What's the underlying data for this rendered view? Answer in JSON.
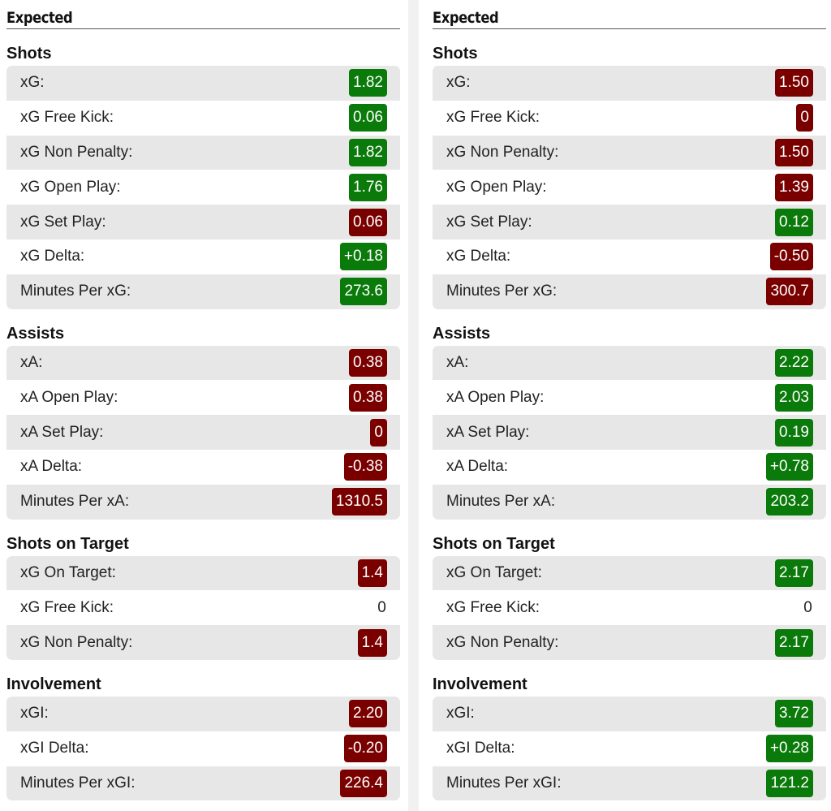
{
  "colors": {
    "good": "#0a7a0a",
    "bad": "#7a0000",
    "row_alt": "#e7e7e7"
  },
  "panels": [
    {
      "header": "Expected",
      "sections": [
        {
          "title": "Shots",
          "rows": [
            {
              "label": "xG:",
              "value": "1.82",
              "status": "good"
            },
            {
              "label": "xG Free Kick:",
              "value": "0.06",
              "status": "good"
            },
            {
              "label": "xG Non Penalty:",
              "value": "1.82",
              "status": "good"
            },
            {
              "label": "xG Open Play:",
              "value": "1.76",
              "status": "good"
            },
            {
              "label": "xG Set Play:",
              "value": "0.06",
              "status": "bad"
            },
            {
              "label": "xG Delta:",
              "value": "+0.18",
              "status": "good"
            },
            {
              "label": "Minutes Per xG:",
              "value": "273.6",
              "status": "good"
            }
          ]
        },
        {
          "title": "Assists",
          "rows": [
            {
              "label": "xA:",
              "value": "0.38",
              "status": "bad"
            },
            {
              "label": "xA Open Play:",
              "value": "0.38",
              "status": "bad"
            },
            {
              "label": "xA Set Play:",
              "value": "0",
              "status": "bad"
            },
            {
              "label": "xA Delta:",
              "value": "-0.38",
              "status": "bad"
            },
            {
              "label": "Minutes Per xA:",
              "value": "1310.5",
              "status": "bad"
            }
          ]
        },
        {
          "title": "Shots on Target",
          "rows": [
            {
              "label": "xG On Target:",
              "value": "1.4",
              "status": "bad"
            },
            {
              "label": "xG Free Kick:",
              "value": "0",
              "status": "plain"
            },
            {
              "label": "xG Non Penalty:",
              "value": "1.4",
              "status": "bad"
            }
          ]
        },
        {
          "title": "Involvement",
          "rows": [
            {
              "label": "xGI:",
              "value": "2.20",
              "status": "bad"
            },
            {
              "label": "xGI Delta:",
              "value": "-0.20",
              "status": "bad"
            },
            {
              "label": "Minutes Per xGI:",
              "value": "226.4",
              "status": "bad"
            }
          ]
        }
      ]
    },
    {
      "header": "Expected",
      "sections": [
        {
          "title": "Shots",
          "rows": [
            {
              "label": "xG:",
              "value": "1.50",
              "status": "bad"
            },
            {
              "label": "xG Free Kick:",
              "value": "0",
              "status": "bad"
            },
            {
              "label": "xG Non Penalty:",
              "value": "1.50",
              "status": "bad"
            },
            {
              "label": "xG Open Play:",
              "value": "1.39",
              "status": "bad"
            },
            {
              "label": "xG Set Play:",
              "value": "0.12",
              "status": "good"
            },
            {
              "label": "xG Delta:",
              "value": "-0.50",
              "status": "bad"
            },
            {
              "label": "Minutes Per xG:",
              "value": "300.7",
              "status": "bad"
            }
          ]
        },
        {
          "title": "Assists",
          "rows": [
            {
              "label": "xA:",
              "value": "2.22",
              "status": "good"
            },
            {
              "label": "xA Open Play:",
              "value": "2.03",
              "status": "good"
            },
            {
              "label": "xA Set Play:",
              "value": "0.19",
              "status": "good"
            },
            {
              "label": "xA Delta:",
              "value": "+0.78",
              "status": "good"
            },
            {
              "label": "Minutes Per xA:",
              "value": "203.2",
              "status": "good"
            }
          ]
        },
        {
          "title": "Shots on Target",
          "rows": [
            {
              "label": "xG On Target:",
              "value": "2.17",
              "status": "good"
            },
            {
              "label": "xG Free Kick:",
              "value": "0",
              "status": "plain"
            },
            {
              "label": "xG Non Penalty:",
              "value": "2.17",
              "status": "good"
            }
          ]
        },
        {
          "title": "Involvement",
          "rows": [
            {
              "label": "xGI:",
              "value": "3.72",
              "status": "good"
            },
            {
              "label": "xGI Delta:",
              "value": "+0.28",
              "status": "good"
            },
            {
              "label": "Minutes Per xGI:",
              "value": "121.2",
              "status": "good"
            }
          ]
        }
      ]
    }
  ]
}
